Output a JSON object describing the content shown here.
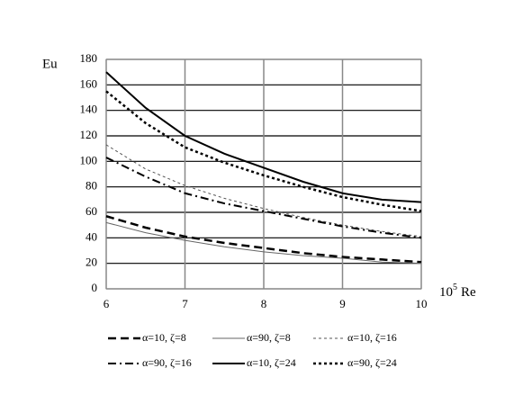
{
  "chart_data": {
    "type": "line",
    "y_label": "Eu",
    "x_label": {
      "base": "10",
      "exponent": "5",
      "unit": "Re"
    },
    "x": [
      6,
      6.5,
      7,
      7.5,
      8,
      8.5,
      9,
      9.5,
      10
    ],
    "xlim": [
      6,
      10
    ],
    "xticks": [
      6,
      7,
      8,
      9,
      10
    ],
    "ylim": [
      0,
      180
    ],
    "yticks": [
      0,
      20,
      40,
      60,
      80,
      100,
      120,
      140,
      160,
      180
    ],
    "grid": true,
    "series": [
      {
        "name": "α=10, ζ=8",
        "color": "#000000",
        "style": "dashed",
        "width": 2.5,
        "values": [
          57,
          48,
          41,
          36,
          32,
          28,
          25,
          23,
          21
        ]
      },
      {
        "name": "α=90, ζ=8",
        "color": "#666666",
        "style": "solid",
        "width": 1,
        "values": [
          52,
          44,
          38,
          33,
          29,
          26,
          24,
          21,
          20
        ]
      },
      {
        "name": "α=10, ζ=16",
        "color": "#555555",
        "style": "dotted",
        "width": 1,
        "values": [
          113,
          94,
          81,
          71,
          63,
          56,
          50,
          45,
          41
        ]
      },
      {
        "name": "α=90, ζ=16",
        "color": "#000000",
        "style": "dashdot",
        "width": 2,
        "values": [
          103,
          88,
          75,
          67,
          61,
          55,
          49,
          44,
          40
        ]
      },
      {
        "name": "α=10, ζ=24",
        "color": "#000000",
        "style": "solid",
        "width": 2,
        "values": [
          170,
          142,
          120,
          106,
          95,
          84,
          75,
          70,
          68
        ]
      },
      {
        "name": "α=90, ζ=24",
        "color": "#000000",
        "style": "dotted",
        "width": 2.5,
        "values": [
          155,
          130,
          111,
          99,
          89,
          80,
          72,
          66,
          61
        ]
      }
    ]
  }
}
